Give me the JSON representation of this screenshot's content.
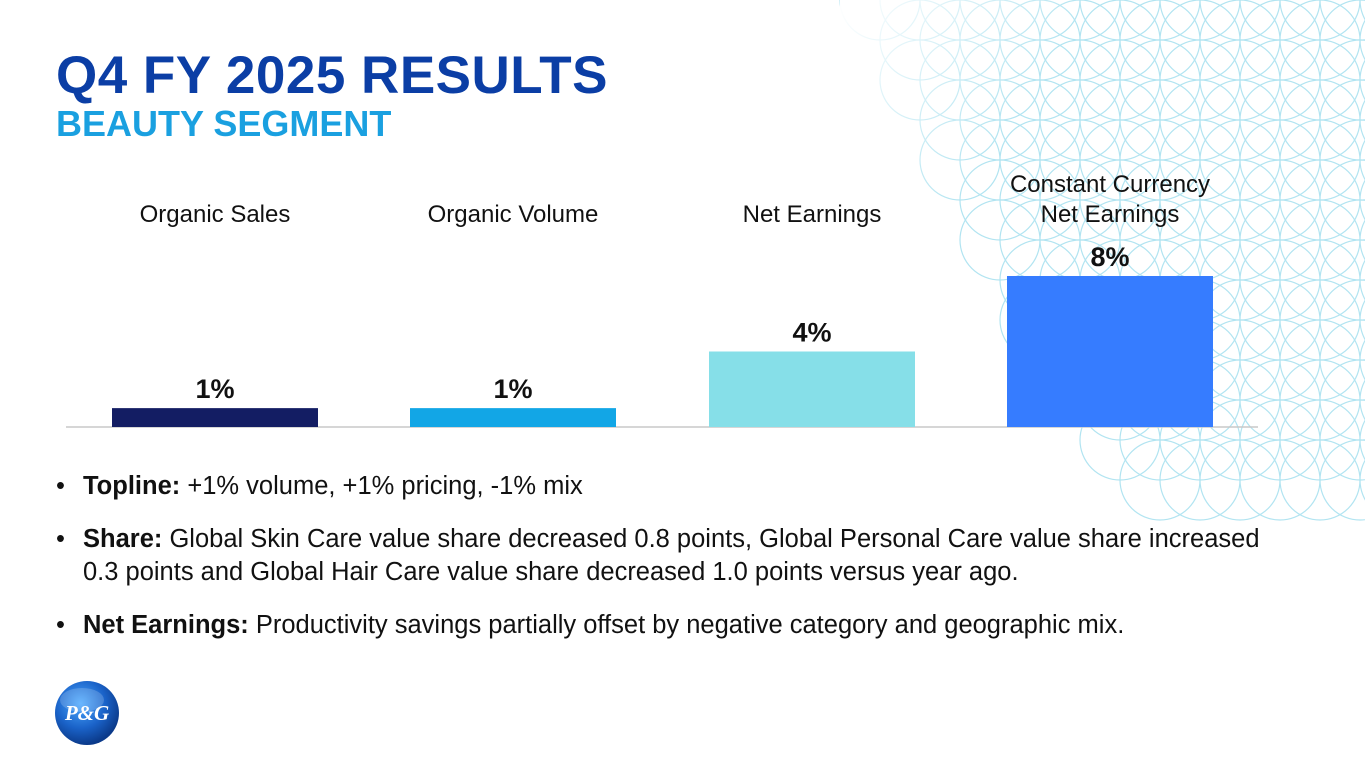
{
  "colors": {
    "title": "#0b3ea5",
    "subtitle": "#1aa0e0",
    "bars": [
      "#131d63",
      "#12a6e6",
      "#86dfe8",
      "#367cff"
    ],
    "pattern": "#7fd3e8",
    "logo": "#1a62c8"
  },
  "header": {
    "title": "Q4 FY 2025 RESULTS",
    "subtitle": "BEAUTY SEGMENT"
  },
  "chart_data": {
    "type": "bar",
    "categories": [
      "Organic Sales",
      "Organic Volume",
      "Net Earnings",
      "Constant Currency\nNet Earnings"
    ],
    "values": [
      1,
      1,
      4,
      8
    ],
    "data_labels": [
      "1%",
      "1%",
      "4%",
      "8%"
    ],
    "unit": "%",
    "ylim": [
      0,
      8
    ],
    "grid": false,
    "legend": "none"
  },
  "bullets": [
    {
      "bold": "Topline:",
      "text": " +1% volume, +1% pricing, -1% mix"
    },
    {
      "bold": "Share:",
      "text": " Global Skin Care value share decreased 0.8 points, Global Personal Care value share increased 0.3 points and Global Hair Care value share decreased 1.0 points versus year ago."
    },
    {
      "bold": "Net Earnings:",
      "text": " Productivity savings partially offset by negative category and geographic mix."
    }
  ],
  "logo": {
    "text": "P&G"
  }
}
